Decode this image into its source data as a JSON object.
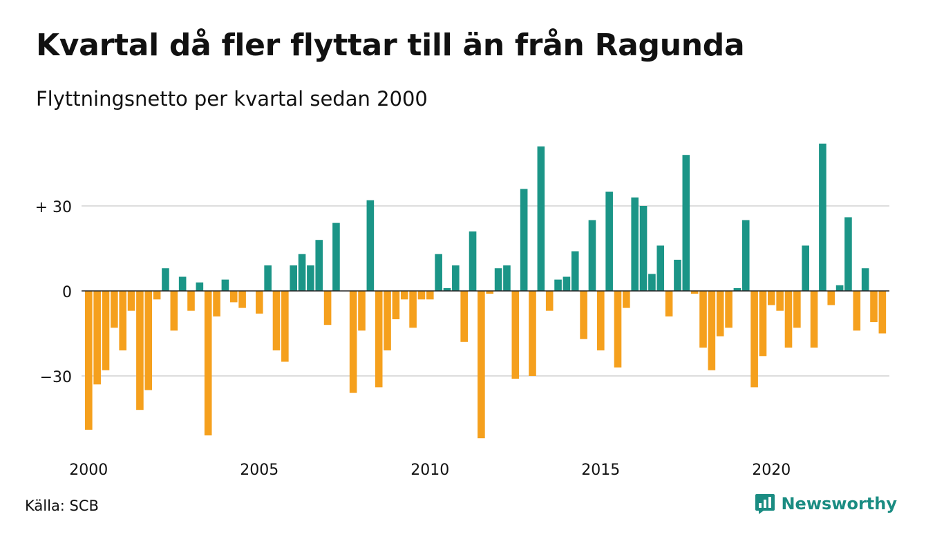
{
  "header": {
    "title": "Kvartal då fler flyttar till än från Ragunda",
    "subtitle": "Flyttningsnetto per kvartal sedan 2000"
  },
  "footer": {
    "source": "Källa: SCB",
    "brand": "Newsworthy"
  },
  "colors": {
    "positive": "#1b9587",
    "negative": "#f5a01d",
    "grid": "#dddddd",
    "baseline": "#222222",
    "brand": "#1a8c82"
  },
  "chart_data": {
    "type": "bar",
    "start_year": 2000,
    "values": [
      -49,
      -33,
      -28,
      -13,
      -21,
      -7,
      -42,
      -35,
      -3,
      8,
      -14,
      5,
      -7,
      3,
      -51,
      -9,
      4,
      -4,
      -6,
      0,
      -8,
      9,
      -21,
      -25,
      9,
      13,
      9,
      18,
      -12,
      24,
      0,
      -36,
      -14,
      32,
      -34,
      -21,
      -10,
      -3,
      -13,
      -3,
      -3,
      13,
      1,
      9,
      -18,
      21,
      -52,
      -1,
      8,
      9,
      -31,
      36,
      -30,
      51,
      -7,
      4,
      5,
      14,
      -17,
      25,
      -21,
      35,
      -27,
      -6,
      33,
      30,
      6,
      16,
      -9,
      11,
      48,
      -1,
      -20,
      -28,
      -16,
      -13,
      1,
      25,
      -34,
      -23,
      -5,
      -7,
      -20,
      -13,
      16,
      -20,
      52,
      -5,
      2,
      26,
      -14,
      8,
      -11,
      -15
    ],
    "ylim": [
      -55,
      55
    ],
    "yticks": [
      {
        "value": 30,
        "label": "+ 30"
      },
      {
        "value": 0,
        "label": "0"
      },
      {
        "value": -30,
        "label": "−30"
      }
    ],
    "xticks": [
      {
        "year": 2000,
        "label": "2000"
      },
      {
        "year": 2005,
        "label": "2005"
      },
      {
        "year": 2010,
        "label": "2010"
      },
      {
        "year": 2015,
        "label": "2015"
      },
      {
        "year": 2020,
        "label": "2020"
      }
    ],
    "grid": true,
    "legend": "none"
  }
}
